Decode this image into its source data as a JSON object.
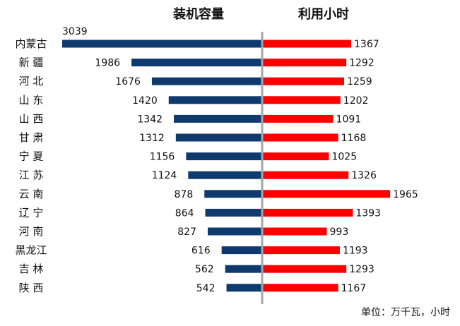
{
  "chart_data": {
    "type": "bar",
    "layout": "butterfly",
    "left_title": "装机容量",
    "right_title": "利用小时",
    "unit_note": "单位：万千瓦，小时",
    "categories": [
      "内蒙古",
      "新  疆",
      "河  北",
      "山  东",
      "山  西",
      "甘  肃",
      "宁  夏",
      "江  苏",
      "云  南",
      "辽  宁",
      "河  南",
      "黑龙江",
      "吉  林",
      "陕  西"
    ],
    "series": [
      {
        "name": "装机容量",
        "color": "#0f3a6e",
        "values": [
          3039,
          1986,
          1676,
          1420,
          1342,
          1312,
          1156,
          1124,
          878,
          864,
          827,
          616,
          562,
          542
        ]
      },
      {
        "name": "利用小时",
        "color": "#ff0000",
        "values": [
          1367,
          1292,
          1259,
          1202,
          1091,
          1168,
          1025,
          1326,
          1965,
          1393,
          993,
          1193,
          1293,
          1167
        ]
      }
    ],
    "axis_color": "#a6a6a6"
  }
}
